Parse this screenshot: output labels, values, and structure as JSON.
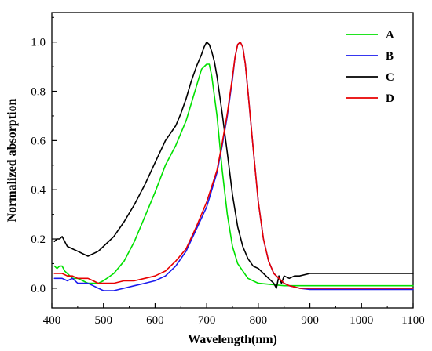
{
  "chart_data": {
    "type": "line",
    "title": "",
    "xlabel": "Wavelength(nm)",
    "ylabel": "Normalized absorption",
    "xlim": [
      400,
      1100
    ],
    "ylim": [
      -0.08,
      1.12
    ],
    "xticks": [
      400,
      500,
      600,
      700,
      800,
      900,
      1000,
      1100
    ],
    "xtick_labels": [
      "400",
      "500",
      "600",
      "700",
      "800",
      "900",
      "1000",
      "1100"
    ],
    "yticks": [
      0.0,
      0.2,
      0.4,
      0.6,
      0.8,
      1.0
    ],
    "ytick_labels": [
      "0.0",
      "0.2",
      "0.4",
      "0.6",
      "0.8",
      "1.0"
    ],
    "grid": false,
    "legend_position": "top-right",
    "series": [
      {
        "name": "A",
        "color": "#00e000",
        "x": [
          405,
          410,
          415,
          420,
          425,
          430,
          440,
          450,
          460,
          470,
          480,
          490,
          500,
          520,
          540,
          560,
          580,
          600,
          620,
          640,
          660,
          680,
          690,
          700,
          705,
          710,
          720,
          730,
          740,
          750,
          760,
          780,
          800,
          850,
          900,
          1000,
          1100
        ],
        "y": [
          0.09,
          0.08,
          0.09,
          0.09,
          0.07,
          0.06,
          0.04,
          0.04,
          0.03,
          0.02,
          0.02,
          0.02,
          0.03,
          0.06,
          0.11,
          0.19,
          0.29,
          0.39,
          0.5,
          0.58,
          0.68,
          0.82,
          0.89,
          0.91,
          0.91,
          0.86,
          0.7,
          0.48,
          0.3,
          0.17,
          0.1,
          0.04,
          0.02,
          0.01,
          0.01,
          0.01,
          0.01
        ]
      },
      {
        "name": "B",
        "color": "#1a1aee",
        "x": [
          405,
          420,
          430,
          440,
          450,
          460,
          470,
          480,
          490,
          500,
          520,
          540,
          560,
          580,
          600,
          620,
          640,
          660,
          680,
          700,
          720,
          730,
          740,
          750,
          755,
          760,
          765,
          770,
          775,
          780,
          790,
          800,
          810,
          820,
          830,
          840,
          850,
          860,
          880,
          900,
          1000,
          1100
        ],
        "y": [
          0.04,
          0.04,
          0.03,
          0.04,
          0.02,
          0.02,
          0.02,
          0.01,
          0.0,
          -0.01,
          -0.01,
          0.0,
          0.01,
          0.02,
          0.03,
          0.05,
          0.09,
          0.15,
          0.24,
          0.33,
          0.47,
          0.58,
          0.7,
          0.85,
          0.94,
          0.99,
          1.0,
          0.98,
          0.91,
          0.8,
          0.57,
          0.35,
          0.2,
          0.11,
          0.06,
          0.04,
          0.02,
          0.01,
          0.0,
          -0.005,
          -0.005,
          -0.005
        ]
      },
      {
        "name": "C",
        "color": "#000000",
        "x": [
          405,
          410,
          415,
          420,
          425,
          430,
          440,
          450,
          460,
          470,
          480,
          490,
          500,
          520,
          540,
          560,
          580,
          600,
          620,
          640,
          650,
          660,
          670,
          680,
          690,
          695,
          700,
          705,
          710,
          715,
          720,
          730,
          740,
          750,
          760,
          770,
          780,
          790,
          800,
          810,
          820,
          830,
          835,
          840,
          845,
          850,
          860,
          870,
          880,
          900,
          950,
          1000,
          1050,
          1100
        ],
        "y": [
          0.19,
          0.2,
          0.2,
          0.21,
          0.19,
          0.17,
          0.16,
          0.15,
          0.14,
          0.13,
          0.14,
          0.15,
          0.17,
          0.21,
          0.27,
          0.34,
          0.42,
          0.51,
          0.6,
          0.66,
          0.71,
          0.77,
          0.84,
          0.9,
          0.95,
          0.98,
          1.0,
          0.99,
          0.96,
          0.92,
          0.86,
          0.71,
          0.55,
          0.38,
          0.25,
          0.17,
          0.12,
          0.09,
          0.08,
          0.06,
          0.04,
          0.02,
          0.0,
          0.05,
          0.02,
          0.05,
          0.04,
          0.05,
          0.05,
          0.06,
          0.06,
          0.06,
          0.06,
          0.06
        ]
      },
      {
        "name": "D",
        "color": "#e80000",
        "x": [
          405,
          410,
          420,
          430,
          440,
          450,
          460,
          470,
          480,
          490,
          500,
          520,
          540,
          560,
          580,
          600,
          620,
          640,
          660,
          680,
          700,
          720,
          730,
          740,
          750,
          755,
          760,
          765,
          770,
          775,
          780,
          790,
          800,
          810,
          820,
          830,
          840,
          850,
          860,
          880,
          900,
          1000,
          1100
        ],
        "y": [
          0.06,
          0.06,
          0.06,
          0.05,
          0.05,
          0.04,
          0.04,
          0.04,
          0.03,
          0.02,
          0.02,
          0.02,
          0.03,
          0.03,
          0.04,
          0.05,
          0.07,
          0.11,
          0.16,
          0.25,
          0.35,
          0.48,
          0.59,
          0.71,
          0.86,
          0.94,
          0.99,
          1.0,
          0.98,
          0.91,
          0.8,
          0.57,
          0.35,
          0.2,
          0.11,
          0.06,
          0.04,
          0.02,
          0.01,
          0.0,
          0.0,
          0.0,
          0.0
        ]
      }
    ]
  }
}
